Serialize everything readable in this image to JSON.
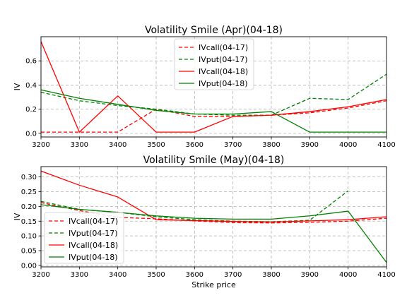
{
  "chart_data": [
    {
      "type": "line",
      "title": "Volatility Smile (Apr)(04-18)",
      "xlabel": "",
      "ylabel": "IV",
      "x": [
        3200,
        3300,
        3400,
        3500,
        3600,
        3700,
        3800,
        3900,
        4000,
        4100
      ],
      "xlim": [
        3200,
        4100
      ],
      "ylim": [
        -0.03,
        0.8
      ],
      "xticks": [
        "3200",
        "3300",
        "3400",
        "3500",
        "3600",
        "3700",
        "3800",
        "3900",
        "4000",
        "4100"
      ],
      "yticks": [
        "0.0",
        "0.2",
        "0.4",
        "0.6"
      ],
      "grid": true,
      "legend_position": "upper-center",
      "series": [
        {
          "name": "IVcall(04-17)",
          "color": "#ff0000",
          "dash": true,
          "values": [
            0.01,
            0.01,
            0.01,
            0.2,
            0.14,
            0.14,
            0.15,
            0.17,
            0.21,
            0.27
          ]
        },
        {
          "name": "IVput(04-17)",
          "color": "#008000",
          "dash": true,
          "values": [
            0.34,
            0.27,
            0.23,
            0.2,
            0.16,
            0.15,
            0.15,
            0.29,
            0.28,
            0.49
          ]
        },
        {
          "name": "IVcall(04-18)",
          "color": "#ff0000",
          "dash": false,
          "values": [
            0.76,
            0.01,
            0.31,
            0.01,
            0.01,
            0.14,
            0.15,
            0.18,
            0.22,
            0.28
          ]
        },
        {
          "name": "IVput(04-18)",
          "color": "#008000",
          "dash": false,
          "values": [
            0.36,
            0.29,
            0.24,
            0.19,
            0.16,
            0.16,
            0.18,
            0.01,
            0.01,
            0.01
          ]
        }
      ]
    },
    {
      "type": "line",
      "title": "Volatility Smile (May)(04-18)",
      "xlabel": "Strike price",
      "ylabel": "IV",
      "x": [
        3200,
        3300,
        3400,
        3500,
        3600,
        3700,
        3800,
        3900,
        4000,
        4100
      ],
      "xlim": [
        3200,
        4100
      ],
      "ylim": [
        -0.005,
        0.335
      ],
      "xticks": [
        "3200",
        "3300",
        "3400",
        "3500",
        "3600",
        "3700",
        "3800",
        "3900",
        "4000",
        "4100"
      ],
      "yticks": [
        "0.00",
        "0.05",
        "0.10",
        "0.15",
        "0.20",
        "0.25",
        "0.30"
      ],
      "grid": true,
      "legend_position": "lower-left",
      "series": [
        {
          "name": "IVcall(04-17)",
          "color": "#ff0000",
          "dash": true,
          "values": [
            0.213,
            0.186,
            0.163,
            0.158,
            0.151,
            0.145,
            0.144,
            0.146,
            0.15,
            0.16
          ]
        },
        {
          "name": "IVput(04-17)",
          "color": "#008000",
          "dash": true,
          "values": [
            0.217,
            0.19,
            0.18,
            0.165,
            0.155,
            0.15,
            0.148,
            0.153,
            0.253,
            null
          ]
        },
        {
          "name": "IVcall(04-18)",
          "color": "#ff0000",
          "dash": false,
          "values": [
            0.32,
            0.272,
            0.232,
            0.155,
            0.152,
            0.149,
            0.147,
            0.151,
            0.155,
            0.165
          ]
        },
        {
          "name": "IVput(04-18)",
          "color": "#008000",
          "dash": false,
          "values": [
            0.206,
            0.19,
            0.18,
            0.168,
            0.16,
            0.157,
            0.157,
            0.168,
            0.184,
            0.01
          ]
        }
      ]
    }
  ]
}
